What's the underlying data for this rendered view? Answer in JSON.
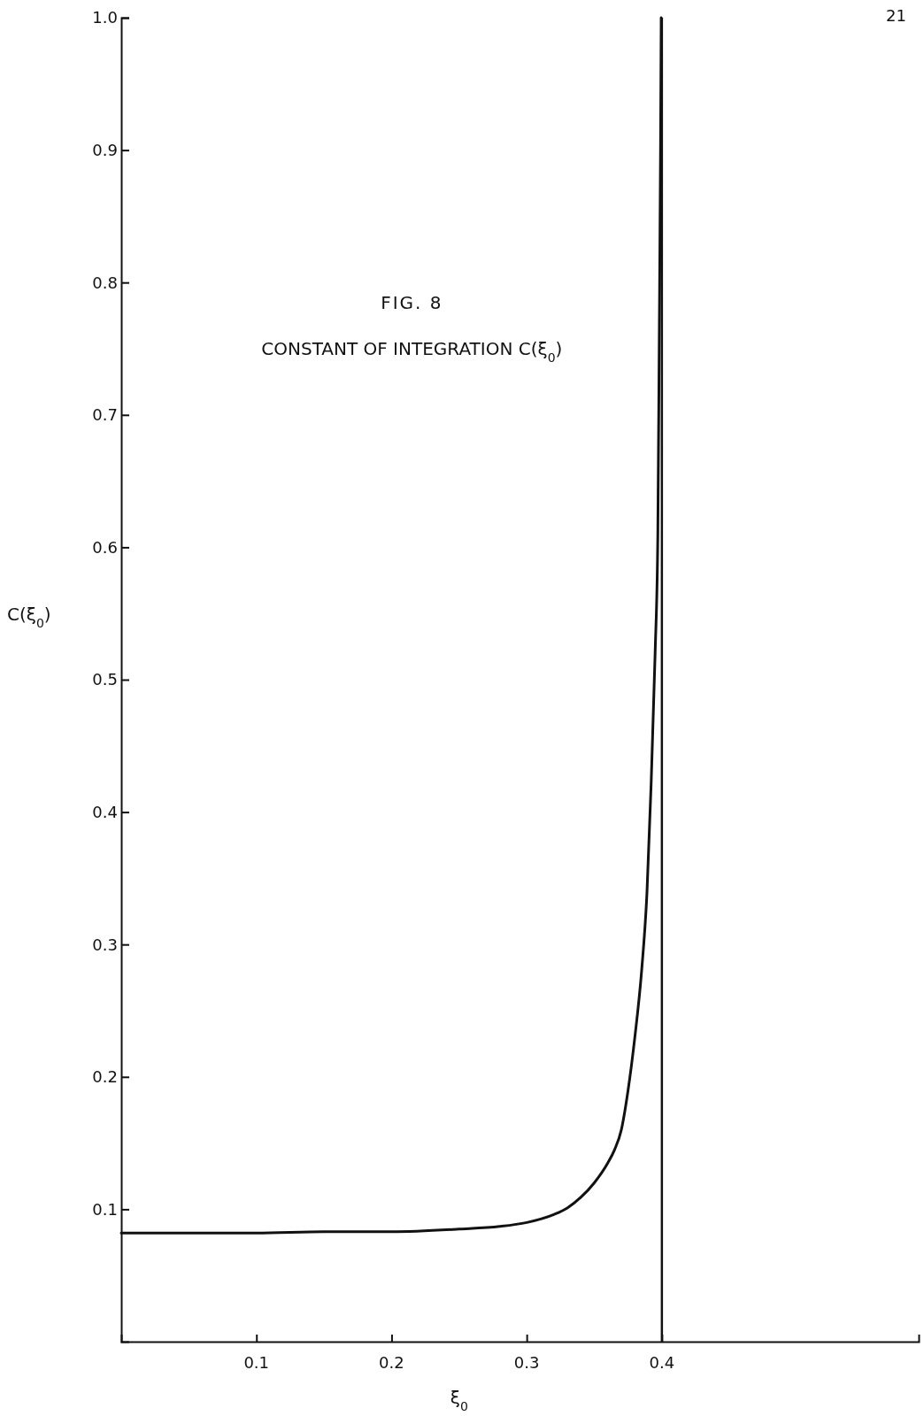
{
  "chart_data": {
    "type": "line",
    "title": "FIG. 8",
    "subtitle": "CONSTANT OF INTEGRATION C(ξ$_{0}$)",
    "xlabel": "ξ$_{0}$",
    "ylabel": "C(ξ$_{0}$)",
    "annotations": [
      "21"
    ],
    "x": [
      0,
      0.05,
      0.1,
      0.15,
      0.2,
      0.25,
      0.28,
      0.3,
      0.32,
      0.33,
      0.34,
      0.35,
      0.36,
      0.365,
      0.37,
      0.375,
      0.38,
      0.385,
      0.389,
      0.392,
      0.395,
      0.397,
      0.398,
      0.399,
      0.3995
    ],
    "series": [
      {
        "color": "#111111",
        "values": [
          0.082,
          0.082,
          0.082,
          0.083,
          0.083,
          0.085,
          0.087,
          0.09,
          0.096,
          0.101,
          0.109,
          0.12,
          0.135,
          0.145,
          0.16,
          0.19,
          0.23,
          0.28,
          0.34,
          0.42,
          0.52,
          0.61,
          0.75,
          0.9,
          1.0
        ]
      }
    ],
    "xlim": [
      0,
      0.59
    ],
    "ylim": [
      0,
      1.0
    ],
    "xticks": [
      {
        "value": 0.1,
        "label": "0.1"
      },
      {
        "value": 0.2,
        "label": "0.2"
      },
      {
        "value": 0.3,
        "label": "0.3"
      },
      {
        "value": 0.4,
        "label": "0.4"
      }
    ],
    "yticks": [
      {
        "value": 0.1,
        "label": "0.1"
      },
      {
        "value": 0.2,
        "label": "0.2"
      },
      {
        "value": 0.3,
        "label": "0.3"
      },
      {
        "value": 0.4,
        "label": "0.4"
      },
      {
        "value": 0.5,
        "label": "0.5"
      },
      {
        "value": 0.6,
        "label": "0.6"
      },
      {
        "value": 0.7,
        "label": "0.7"
      },
      {
        "value": 0.8,
        "label": "0.8"
      },
      {
        "value": 0.9,
        "label": "0.9"
      },
      {
        "value": 1.0,
        "label": "1.0"
      }
    ],
    "ref_lines": [
      {
        "axis": "x",
        "value": 0.4,
        "color": "#111111"
      }
    ],
    "grid": false,
    "marker": "none",
    "line_style": "solid"
  }
}
